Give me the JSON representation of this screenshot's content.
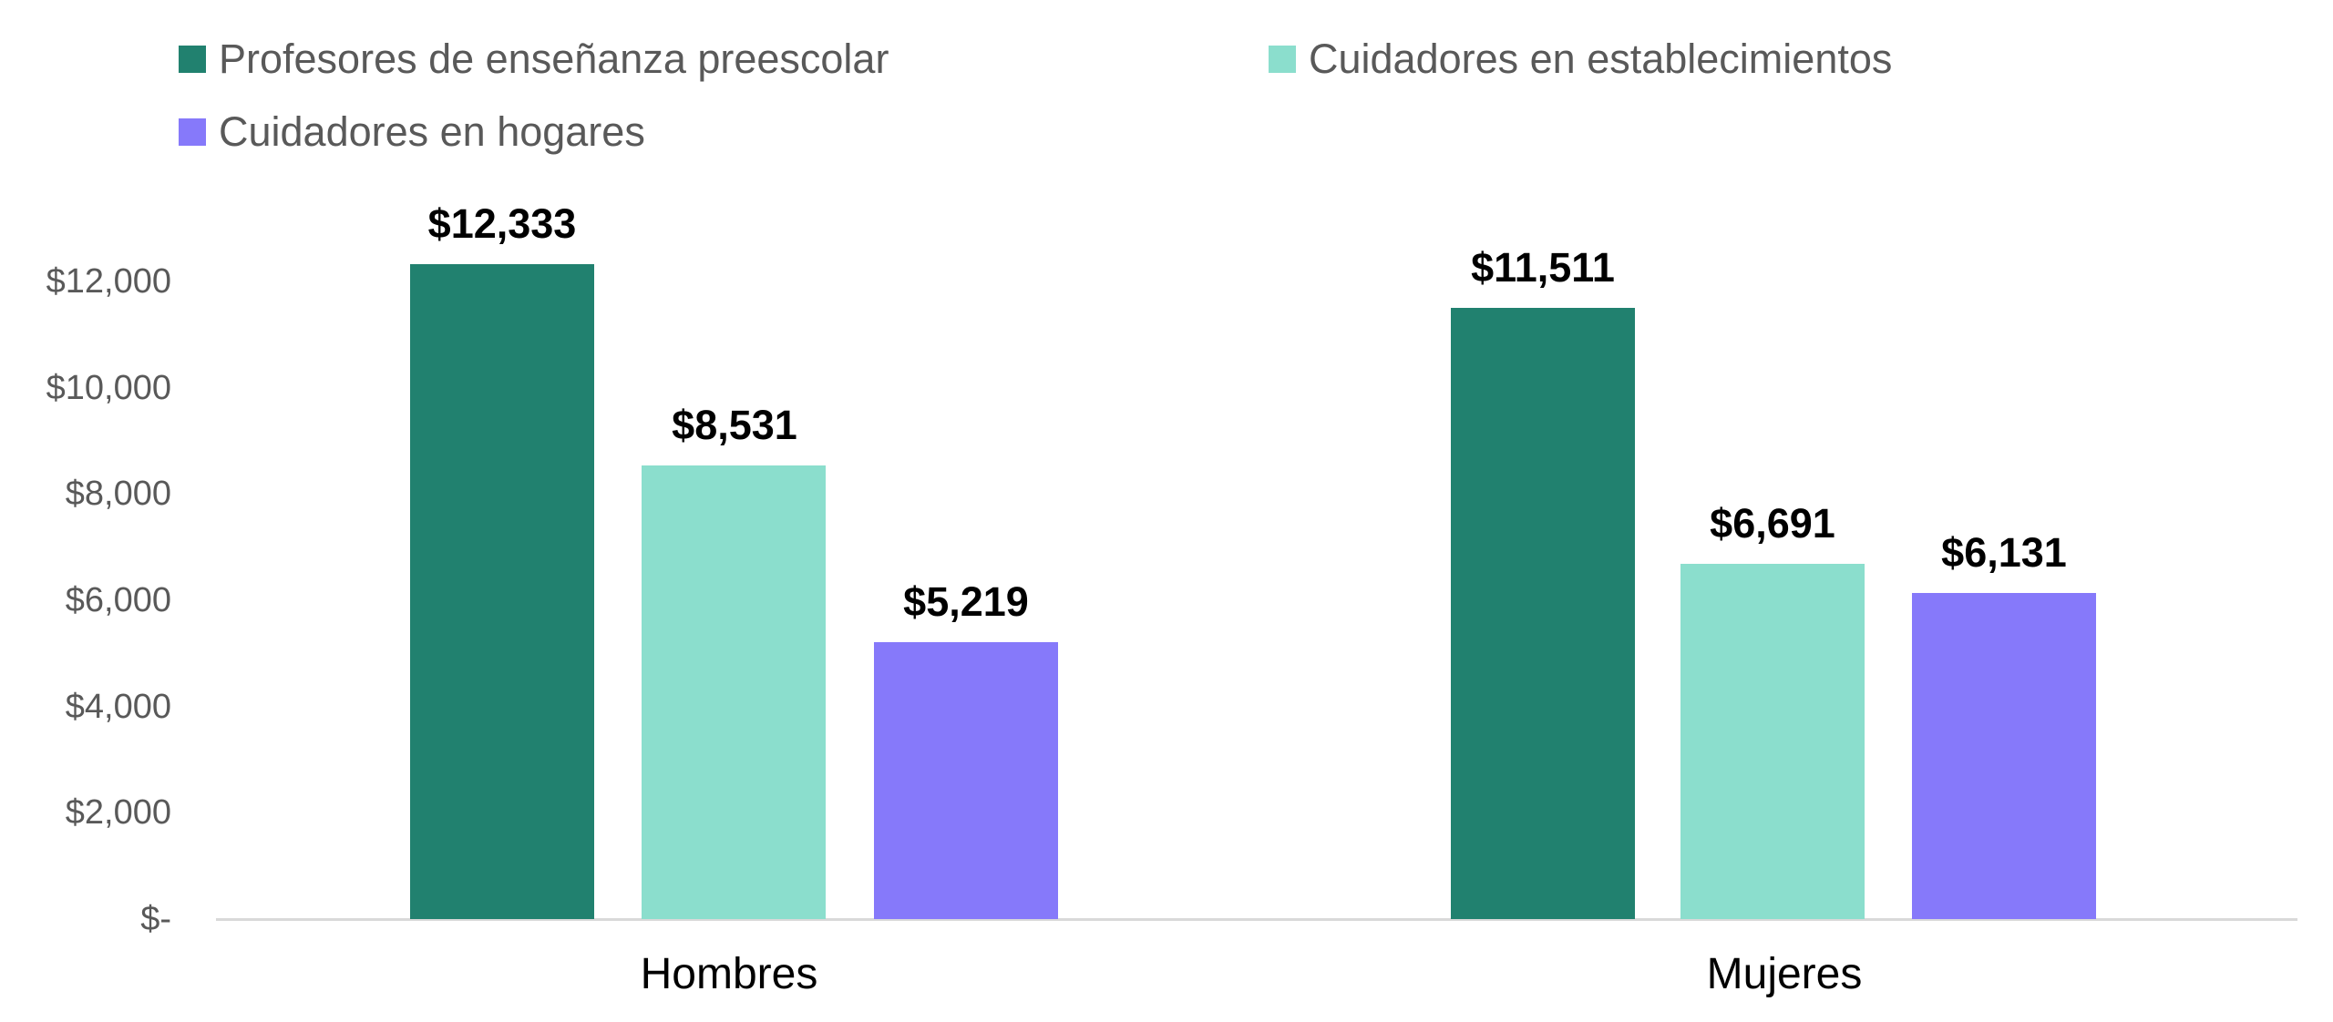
{
  "chart_data": {
    "type": "bar",
    "title": "",
    "categories": [
      "Hombres",
      "Mujeres"
    ],
    "series": [
      {
        "name": "Profesores de enseñanza preescolar",
        "color": "#21816F",
        "values": [
          12333,
          11511
        ],
        "value_labels": [
          "$12,333",
          "$11,511"
        ]
      },
      {
        "name": "Cuidadores en establecimientos",
        "color": "#8BDECD",
        "values": [
          8531,
          6691
        ],
        "value_labels": [
          "$8,531",
          "$6,691"
        ]
      },
      {
        "name": "Cuidadores en hogares",
        "color": "#8679FA",
        "values": [
          5219,
          6131
        ],
        "value_labels": [
          "$5,219",
          "$6,131"
        ]
      }
    ],
    "y_axis": {
      "ticks": [
        0,
        2000,
        4000,
        6000,
        8000,
        10000,
        12000
      ],
      "tick_labels": [
        "$-",
        "$2,000",
        "$4,000",
        "$6,000",
        "$8,000",
        "$10,000",
        "$12,000"
      ],
      "max": 12000
    },
    "legend_position": "top-left",
    "grid": false,
    "colors": {
      "axis_line": "#d9d9d9",
      "tick_text": "#595959",
      "legend_text": "#595959",
      "value_text": "#000000"
    }
  }
}
